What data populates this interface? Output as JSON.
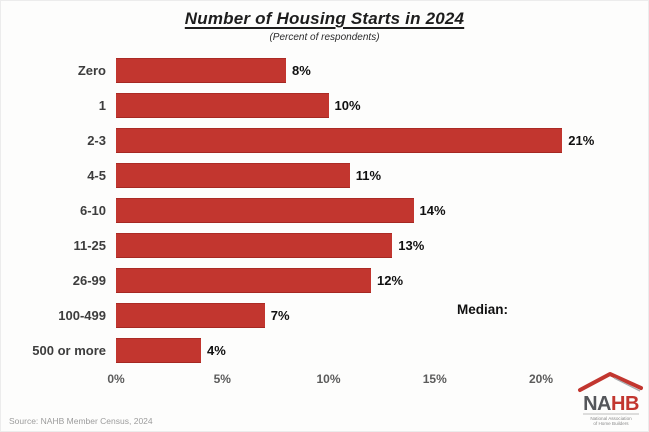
{
  "header": {
    "title": "Number of Housing Starts in 2024",
    "subtitle": "(Percent of respondents)"
  },
  "chart_data": {
    "type": "bar",
    "orientation": "horizontal",
    "title": "Number of Housing Starts in 2024",
    "subtitle": "(Percent of respondents)",
    "categories": [
      "Zero",
      "1",
      "2-3",
      "4-5",
      "6-10",
      "11-25",
      "26-99",
      "100-499",
      "500 or more"
    ],
    "values": [
      8,
      10,
      21,
      11,
      14,
      13,
      12,
      7,
      4
    ],
    "value_label_suffix": "%",
    "x_ticks": [
      {
        "label": "0%",
        "value": 0
      },
      {
        "label": "5%",
        "value": 5
      },
      {
        "label": "10%",
        "value": 10
      },
      {
        "label": "15%",
        "value": 15
      },
      {
        "label": "20%",
        "value": 20
      }
    ],
    "xlim": [
      0,
      21.5
    ],
    "grid": false,
    "legend": false,
    "bar_color": "#c2362f"
  },
  "annotations": {
    "median_label": "Median:"
  },
  "footer": {
    "source": "Source: NAHB Member Census, 2024"
  },
  "logo": {
    "name_dark": "NA",
    "name_red": "HB",
    "tagline_line1": "National Association",
    "tagline_line2": "of Home Builders"
  }
}
